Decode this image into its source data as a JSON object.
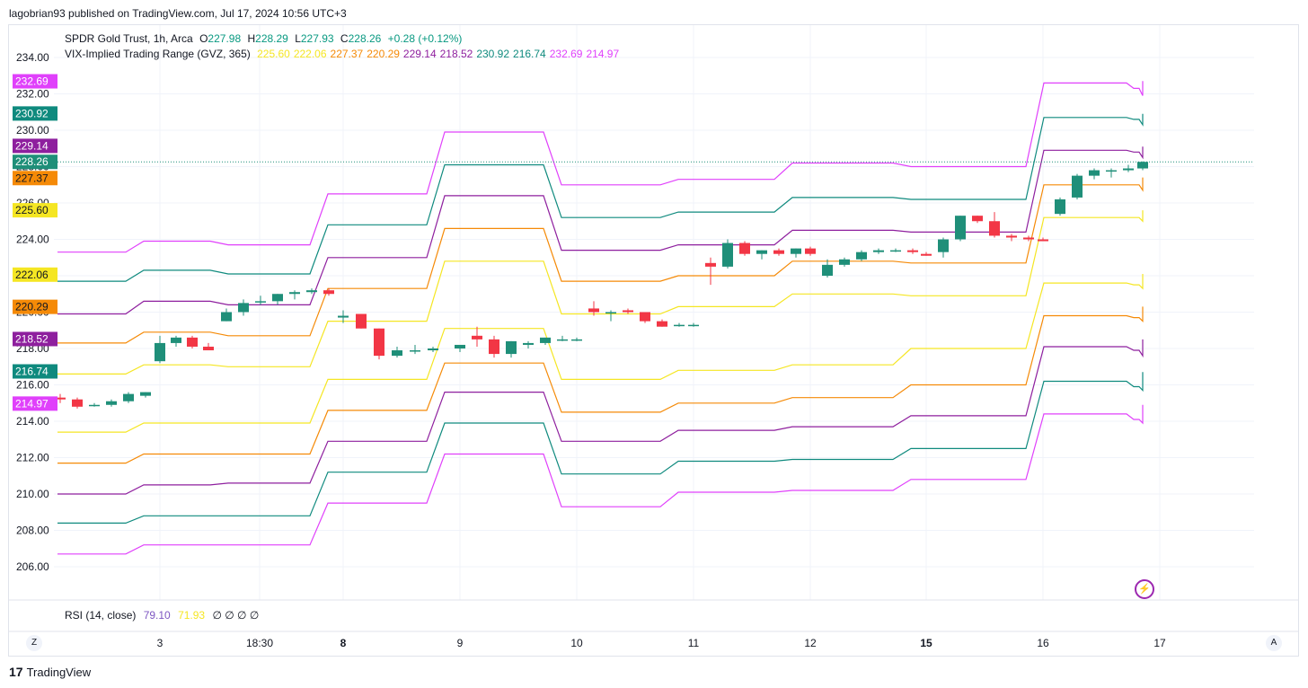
{
  "header": {
    "text": "lagobrian93 published on TradingView.com, Jul 17, 2024 10:56 UTC+3"
  },
  "legend": {
    "symbol_line": "SPDR Gold Trust, 1h, Arca",
    "ohlc": [
      {
        "label": "O",
        "value": "227.98"
      },
      {
        "label": "H",
        "value": "228.29"
      },
      {
        "label": "L",
        "value": "227.93"
      },
      {
        "label": "C",
        "value": "228.26"
      }
    ],
    "change": "+0.28 (+0.12%)",
    "indicator": "VIX-Implied Trading Range (GVZ, 365)",
    "indicator_values": [
      {
        "value": "225.60",
        "color": "#f5e623"
      },
      {
        "value": "222.06",
        "color": "#f5e623"
      },
      {
        "value": "227.37",
        "color": "#f58a07"
      },
      {
        "value": "220.29",
        "color": "#f58a07"
      },
      {
        "value": "229.14",
        "color": "#8e1f9e"
      },
      {
        "value": "218.52",
        "color": "#8e1f9e"
      },
      {
        "value": "230.92",
        "color": "#0f8a7e"
      },
      {
        "value": "216.74",
        "color": "#0f8a7e"
      },
      {
        "value": "232.69",
        "color": "#e040fb"
      },
      {
        "value": "214.97",
        "color": "#e040fb"
      }
    ]
  },
  "rsi": {
    "label": "RSI (14, close)",
    "value1": "79.10",
    "value2": "71.93",
    "zeros": "∅ ∅ ∅ ∅"
  },
  "footer": {
    "brand": "TradingView",
    "logo_text": "17"
  },
  "buttons": {
    "zoom": "Z",
    "auto": "A"
  },
  "colors": {
    "up": "#26a69a",
    "down": "#ef5350",
    "upBody": "#1f8f79",
    "downBody": "#f23645"
  },
  "chart_data": {
    "type": "candlestick",
    "title": "SPDR Gold Trust, 1h, Arca",
    "ylim": [
      205,
      235
    ],
    "y_ticks": [
      "206.00",
      "208.00",
      "210.00",
      "212.00",
      "214.00",
      "216.00",
      "218.00",
      "220.00",
      "222.00",
      "224.00",
      "226.00",
      "228.00",
      "230.00",
      "232.00",
      "234.00"
    ],
    "x_ticks": [
      {
        "label": "3",
        "bold": false
      },
      {
        "label": "18:30",
        "bold": false
      },
      {
        "label": "8",
        "bold": true
      },
      {
        "label": "9",
        "bold": false
      },
      {
        "label": "10",
        "bold": false
      },
      {
        "label": "11",
        "bold": false
      },
      {
        "label": "12",
        "bold": false
      },
      {
        "label": "15",
        "bold": true
      },
      {
        "label": "16",
        "bold": false
      },
      {
        "label": "17",
        "bold": false
      }
    ],
    "price_labels": [
      {
        "value": "232.69",
        "color": "#e040fb"
      },
      {
        "value": "230.92",
        "color": "#0f8a7e"
      },
      {
        "value": "229.14",
        "color": "#8e1f9e"
      },
      {
        "value": "228.26",
        "color": "#1f8f79"
      },
      {
        "value": "227.37",
        "color": "#f58a07"
      },
      {
        "value": "225.60",
        "color": "#f5e623"
      },
      {
        "value": "222.06",
        "color": "#f5e623"
      },
      {
        "value": "220.29",
        "color": "#f58a07"
      },
      {
        "value": "218.52",
        "color": "#8e1f9e"
      },
      {
        "value": "216.74",
        "color": "#0f8a7e"
      },
      {
        "value": "214.97",
        "color": "#e040fb"
      }
    ],
    "last_price": 228.26,
    "bands": [
      {
        "name": "upper-3",
        "color": "#e040fb",
        "steps": [
          [
            0,
            223.3
          ],
          [
            1,
            223.9
          ],
          [
            2,
            223.7
          ],
          [
            3,
            226.5
          ],
          [
            4,
            229.9
          ],
          [
            5,
            227.0
          ],
          [
            6,
            227.3
          ],
          [
            7,
            228.2
          ],
          [
            8,
            228.0
          ],
          [
            9,
            232.6
          ],
          [
            10,
            232.3
          ],
          [
            11,
            231.9
          ],
          [
            12,
            232.7
          ]
        ]
      },
      {
        "name": "upper-2",
        "color": "#0f8a7e",
        "steps": [
          [
            0,
            221.7
          ],
          [
            1,
            222.3
          ],
          [
            2,
            222.1
          ],
          [
            3,
            224.8
          ],
          [
            4,
            228.1
          ],
          [
            5,
            225.2
          ],
          [
            6,
            225.5
          ],
          [
            7,
            226.3
          ],
          [
            8,
            226.2
          ],
          [
            9,
            230.7
          ],
          [
            10,
            230.6
          ],
          [
            11,
            230.3
          ],
          [
            12,
            230.9
          ]
        ]
      },
      {
        "name": "upper-1",
        "color": "#8e1f9e",
        "steps": [
          [
            0,
            219.9
          ],
          [
            1,
            220.6
          ],
          [
            2,
            220.4
          ],
          [
            3,
            223.0
          ],
          [
            4,
            226.4
          ],
          [
            5,
            223.4
          ],
          [
            6,
            223.7
          ],
          [
            7,
            224.5
          ],
          [
            8,
            224.4
          ],
          [
            9,
            228.9
          ],
          [
            10,
            228.8
          ],
          [
            11,
            228.5
          ],
          [
            12,
            229.1
          ]
        ]
      },
      {
        "name": "upper-0",
        "color": "#f58a07",
        "steps": [
          [
            0,
            218.3
          ],
          [
            1,
            218.9
          ],
          [
            2,
            218.7
          ],
          [
            3,
            221.3
          ],
          [
            4,
            224.6
          ],
          [
            5,
            221.7
          ],
          [
            6,
            222.0
          ],
          [
            7,
            222.8
          ],
          [
            8,
            222.7
          ],
          [
            9,
            227.0
          ],
          [
            10,
            227.0
          ],
          [
            11,
            226.7
          ],
          [
            12,
            227.4
          ]
        ]
      },
      {
        "name": "mid-up",
        "color": "#f5e623",
        "steps": [
          [
            0,
            216.6
          ],
          [
            1,
            217.1
          ],
          [
            2,
            217.0
          ],
          [
            3,
            219.5
          ],
          [
            4,
            222.8
          ],
          [
            5,
            219.9
          ],
          [
            6,
            220.3
          ],
          [
            7,
            221.0
          ],
          [
            8,
            220.9
          ],
          [
            9,
            225.2
          ],
          [
            10,
            225.2
          ],
          [
            11,
            225.0
          ],
          [
            12,
            225.6
          ]
        ]
      },
      {
        "name": "mid-down",
        "color": "#f5e623",
        "steps": [
          [
            0,
            213.4
          ],
          [
            1,
            213.9
          ],
          [
            2,
            213.9
          ],
          [
            3,
            216.3
          ],
          [
            4,
            219.1
          ],
          [
            5,
            216.3
          ],
          [
            6,
            216.8
          ],
          [
            7,
            217.1
          ],
          [
            8,
            218.0
          ],
          [
            9,
            221.6
          ],
          [
            10,
            221.5
          ],
          [
            11,
            221.3
          ],
          [
            12,
            222.1
          ]
        ]
      },
      {
        "name": "lower-0",
        "color": "#f58a07",
        "steps": [
          [
            0,
            211.7
          ],
          [
            1,
            212.2
          ],
          [
            2,
            212.2
          ],
          [
            3,
            214.6
          ],
          [
            4,
            217.2
          ],
          [
            5,
            214.5
          ],
          [
            6,
            215.0
          ],
          [
            7,
            215.3
          ],
          [
            8,
            216.0
          ],
          [
            9,
            219.8
          ],
          [
            10,
            219.7
          ],
          [
            11,
            219.5
          ],
          [
            12,
            220.3
          ]
        ]
      },
      {
        "name": "lower-1",
        "color": "#8e1f9e",
        "steps": [
          [
            0,
            210.0
          ],
          [
            1,
            210.5
          ],
          [
            2,
            210.6
          ],
          [
            3,
            212.9
          ],
          [
            4,
            215.6
          ],
          [
            5,
            212.9
          ],
          [
            6,
            213.5
          ],
          [
            7,
            213.7
          ],
          [
            8,
            214.3
          ],
          [
            9,
            218.1
          ],
          [
            10,
            217.9
          ],
          [
            11,
            217.6
          ],
          [
            12,
            218.5
          ]
        ]
      },
      {
        "name": "lower-2",
        "color": "#0f8a7e",
        "steps": [
          [
            0,
            208.4
          ],
          [
            1,
            208.8
          ],
          [
            2,
            208.8
          ],
          [
            3,
            211.2
          ],
          [
            4,
            213.9
          ],
          [
            5,
            211.1
          ],
          [
            6,
            211.8
          ],
          [
            7,
            211.9
          ],
          [
            8,
            212.5
          ],
          [
            9,
            216.2
          ],
          [
            10,
            215.9
          ],
          [
            11,
            215.7
          ],
          [
            12,
            216.7
          ]
        ]
      },
      {
        "name": "lower-3",
        "color": "#e040fb",
        "steps": [
          [
            0,
            206.7
          ],
          [
            1,
            207.2
          ],
          [
            2,
            207.2
          ],
          [
            3,
            209.5
          ],
          [
            4,
            212.2
          ],
          [
            5,
            209.3
          ],
          [
            6,
            210.1
          ],
          [
            7,
            210.2
          ],
          [
            8,
            210.8
          ],
          [
            9,
            214.4
          ],
          [
            10,
            214.1
          ],
          [
            11,
            213.9
          ],
          [
            12,
            214.9
          ]
        ]
      }
    ],
    "band_segments": [
      [
        64,
        140
      ],
      [
        160,
        234
      ],
      [
        254,
        345
      ],
      [
        365,
        475
      ],
      [
        495,
        605
      ],
      [
        625,
        735
      ],
      [
        755,
        862
      ],
      [
        882,
        994
      ],
      [
        1014,
        1142
      ],
      [
        1162,
        1254
      ],
      [
        1262,
        1268
      ],
      [
        1272,
        1272
      ],
      [
        1272,
        1272
      ]
    ],
    "candles": [
      {
        "o": 215.3,
        "h": 215.5,
        "l": 215.0,
        "c": 215.2
      },
      {
        "o": 215.2,
        "h": 215.3,
        "l": 214.7,
        "c": 214.8
      },
      {
        "o": 214.9,
        "h": 215.0,
        "l": 214.8,
        "c": 214.9
      },
      {
        "o": 214.9,
        "h": 215.2,
        "l": 214.8,
        "c": 215.1
      },
      {
        "o": 215.1,
        "h": 215.6,
        "l": 215.0,
        "c": 215.5
      },
      {
        "o": 215.4,
        "h": 215.6,
        "l": 215.3,
        "c": 215.6
      },
      {
        "o": 217.3,
        "h": 218.7,
        "l": 217.2,
        "c": 218.3
      },
      {
        "o": 218.3,
        "h": 218.7,
        "l": 218.1,
        "c": 218.6
      },
      {
        "o": 218.6,
        "h": 218.7,
        "l": 218.0,
        "c": 218.1
      },
      {
        "o": 218.1,
        "h": 218.3,
        "l": 217.9,
        "c": 217.9
      },
      {
        "o": 219.5,
        "h": 220.2,
        "l": 219.5,
        "c": 220.0
      },
      {
        "o": 220.0,
        "h": 220.7,
        "l": 219.8,
        "c": 220.5
      },
      {
        "o": 220.6,
        "h": 220.9,
        "l": 220.4,
        "c": 220.6
      },
      {
        "o": 220.6,
        "h": 221.0,
        "l": 220.4,
        "c": 221.0
      },
      {
        "o": 221.0,
        "h": 221.2,
        "l": 220.7,
        "c": 221.1
      },
      {
        "o": 221.1,
        "h": 221.3,
        "l": 221.0,
        "c": 221.2
      },
      {
        "o": 221.2,
        "h": 221.3,
        "l": 220.9,
        "c": 221.0
      },
      {
        "o": 219.7,
        "h": 220.1,
        "l": 219.4,
        "c": 219.8
      },
      {
        "o": 219.9,
        "h": 219.9,
        "l": 219.1,
        "c": 219.1
      },
      {
        "o": 219.1,
        "h": 219.1,
        "l": 217.4,
        "c": 217.6
      },
      {
        "o": 217.6,
        "h": 218.1,
        "l": 217.5,
        "c": 217.9
      },
      {
        "o": 217.9,
        "h": 218.2,
        "l": 217.7,
        "c": 217.9
      },
      {
        "o": 217.9,
        "h": 218.1,
        "l": 217.8,
        "c": 218.0
      },
      {
        "o": 218.0,
        "h": 218.2,
        "l": 217.8,
        "c": 218.2
      },
      {
        "o": 218.7,
        "h": 219.2,
        "l": 218.1,
        "c": 218.5
      },
      {
        "o": 218.5,
        "h": 218.7,
        "l": 217.5,
        "c": 217.7
      },
      {
        "o": 217.7,
        "h": 218.4,
        "l": 217.5,
        "c": 218.4
      },
      {
        "o": 218.2,
        "h": 218.4,
        "l": 218.0,
        "c": 218.3
      },
      {
        "o": 218.3,
        "h": 218.6,
        "l": 218.2,
        "c": 218.6
      },
      {
        "o": 218.5,
        "h": 218.7,
        "l": 218.4,
        "c": 218.5
      },
      {
        "o": 218.5,
        "h": 218.6,
        "l": 218.4,
        "c": 218.5
      },
      {
        "o": 220.2,
        "h": 220.6,
        "l": 219.8,
        "c": 220.0
      },
      {
        "o": 220.0,
        "h": 220.1,
        "l": 219.5,
        "c": 220.0
      },
      {
        "o": 220.1,
        "h": 220.2,
        "l": 219.9,
        "c": 220.0
      },
      {
        "o": 220.0,
        "h": 220.0,
        "l": 219.4,
        "c": 219.5
      },
      {
        "o": 219.5,
        "h": 219.6,
        "l": 219.2,
        "c": 219.2
      },
      {
        "o": 219.3,
        "h": 219.4,
        "l": 219.2,
        "c": 219.3
      },
      {
        "o": 219.3,
        "h": 219.4,
        "l": 219.2,
        "c": 219.3
      },
      {
        "o": 222.7,
        "h": 223.0,
        "l": 221.5,
        "c": 222.5
      },
      {
        "o": 222.5,
        "h": 224.0,
        "l": 222.4,
        "c": 223.8
      },
      {
        "o": 223.8,
        "h": 223.9,
        "l": 223.1,
        "c": 223.2
      },
      {
        "o": 223.2,
        "h": 223.4,
        "l": 222.9,
        "c": 223.4
      },
      {
        "o": 223.4,
        "h": 223.5,
        "l": 223.1,
        "c": 223.2
      },
      {
        "o": 223.2,
        "h": 223.5,
        "l": 223.0,
        "c": 223.5
      },
      {
        "o": 223.5,
        "h": 223.6,
        "l": 223.1,
        "c": 223.2
      },
      {
        "o": 222.0,
        "h": 222.9,
        "l": 221.9,
        "c": 222.6
      },
      {
        "o": 222.6,
        "h": 223.0,
        "l": 222.5,
        "c": 222.9
      },
      {
        "o": 222.9,
        "h": 223.4,
        "l": 222.8,
        "c": 223.3
      },
      {
        "o": 223.3,
        "h": 223.5,
        "l": 223.2,
        "c": 223.4
      },
      {
        "o": 223.4,
        "h": 223.5,
        "l": 223.3,
        "c": 223.4
      },
      {
        "o": 223.4,
        "h": 223.5,
        "l": 223.2,
        "c": 223.3
      },
      {
        "o": 223.2,
        "h": 223.3,
        "l": 223.1,
        "c": 223.1
      },
      {
        "o": 223.3,
        "h": 224.1,
        "l": 223.0,
        "c": 224.0
      },
      {
        "o": 224.0,
        "h": 225.3,
        "l": 223.9,
        "c": 225.3
      },
      {
        "o": 225.3,
        "h": 225.3,
        "l": 224.9,
        "c": 225.0
      },
      {
        "o": 225.0,
        "h": 225.5,
        "l": 224.1,
        "c": 224.2
      },
      {
        "o": 224.2,
        "h": 224.3,
        "l": 223.9,
        "c": 224.1
      },
      {
        "o": 224.1,
        "h": 224.2,
        "l": 223.9,
        "c": 224.0
      },
      {
        "o": 224.0,
        "h": 224.1,
        "l": 223.9,
        "c": 223.9
      },
      {
        "o": 225.4,
        "h": 226.3,
        "l": 225.3,
        "c": 226.2
      },
      {
        "o": 226.3,
        "h": 227.6,
        "l": 226.2,
        "c": 227.5
      },
      {
        "o": 227.5,
        "h": 227.9,
        "l": 227.3,
        "c": 227.8
      },
      {
        "o": 227.8,
        "h": 227.9,
        "l": 227.4,
        "c": 227.8
      },
      {
        "o": 227.8,
        "h": 228.1,
        "l": 227.7,
        "c": 227.9
      },
      {
        "o": 227.9,
        "h": 228.1,
        "l": 227.8,
        "c": 228.0
      },
      {
        "o": 227.98,
        "h": 228.29,
        "l": 227.93,
        "c": 228.26
      }
    ]
  }
}
